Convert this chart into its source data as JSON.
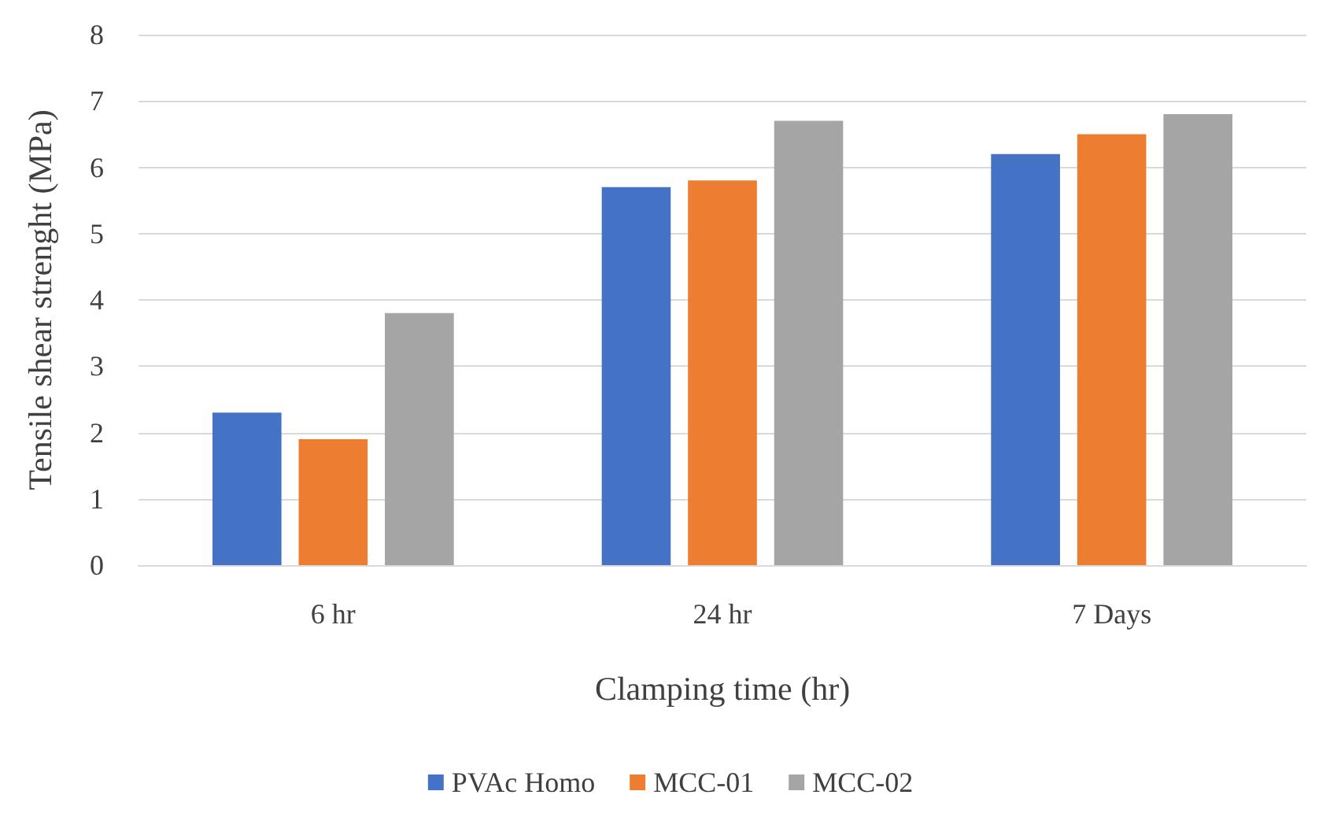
{
  "chart_data": {
    "type": "bar",
    "xlabel": "Clamping time (hr)",
    "ylabel": "Tensile shear strenght (MPa)",
    "categories": [
      "6 hr",
      "24 hr",
      "7 Days"
    ],
    "series": [
      {
        "name": "PVAc Homo",
        "color": "#4472c4",
        "values": [
          2.3,
          5.7,
          6.2
        ]
      },
      {
        "name": "MCC-01",
        "color": "#ed7d31",
        "values": [
          1.9,
          5.8,
          6.5
        ]
      },
      {
        "name": "MCC-02",
        "color": "#a5a5a5",
        "values": [
          3.8,
          6.7,
          6.8
        ]
      }
    ],
    "ylim": [
      0,
      8
    ],
    "yticks": [
      0,
      1,
      2,
      3,
      4,
      5,
      6,
      7,
      8
    ],
    "grid": "y",
    "legend": "bottom"
  }
}
